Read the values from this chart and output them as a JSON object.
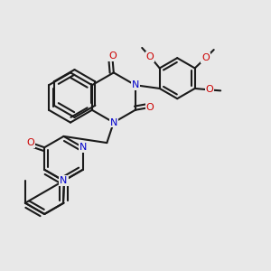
{
  "bg_color": "#e8e8e8",
  "bond_color": "#1a1a1a",
  "N_color": "#0000cc",
  "O_color": "#cc0000",
  "bond_width": 1.5,
  "figsize": [
    3.0,
    3.0
  ],
  "dpi": 100,
  "xlim": [
    0.0,
    1.0
  ],
  "ylim": [
    0.0,
    1.0
  ]
}
